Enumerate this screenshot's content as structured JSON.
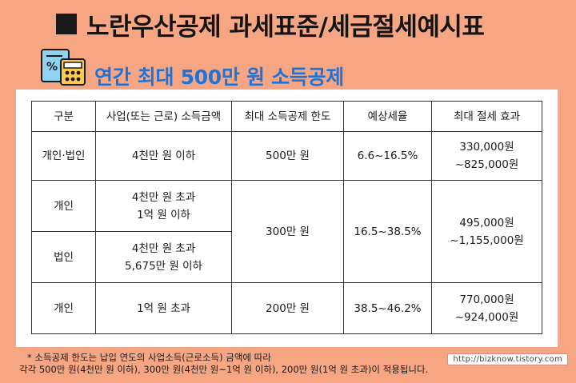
{
  "title": "노란우산공제 과세표준/세금절세예시표",
  "subtitle": "연간 최대 500만 원 소득공제",
  "icon": "calculator-percent-icon",
  "colors": {
    "background": "#F6A683",
    "subtitle": "#1E73D8"
  },
  "table": {
    "headers": [
      "구분",
      "사업(또는 근로) 소득금액",
      "최대 소득공제 한도",
      "예상세율",
      "최대 절세 효과"
    ],
    "rows": [
      {
        "type": "개인·법인",
        "income": [
          "4천만 원 이하"
        ],
        "limit": "500만 원",
        "rate": "6.6~16.5%",
        "saving": [
          "330,000원",
          "~825,000원"
        ]
      },
      {
        "type": "개인",
        "income": [
          "4천만 원 초과",
          "1억 원 이하"
        ],
        "limit": "300만 원",
        "rate": "16.5~38.5%",
        "saving": [
          "495,000원",
          "~1,155,000원"
        ]
      },
      {
        "type": "법인",
        "income": [
          "4천만 원 초과",
          "5,675만 원 이하"
        ]
      },
      {
        "type": "개인",
        "income": [
          "1억 원 초과"
        ],
        "limit": "200만 원",
        "rate": "38.5~46.2%",
        "saving": [
          "770,000원",
          "~924,000원"
        ]
      }
    ]
  },
  "footnote": {
    "line1": "* 소득공제 한도는 납입 연도의 사업소득(근로소득) 금액에 따라",
    "line2": "각각 500만 원(4천만 원 이하), 300만 원(4천만 원~1억 원 이하), 200만 원(1억 원 초과)이 적용됩니다."
  },
  "url_badge": "http://bizknow.tistory.com"
}
